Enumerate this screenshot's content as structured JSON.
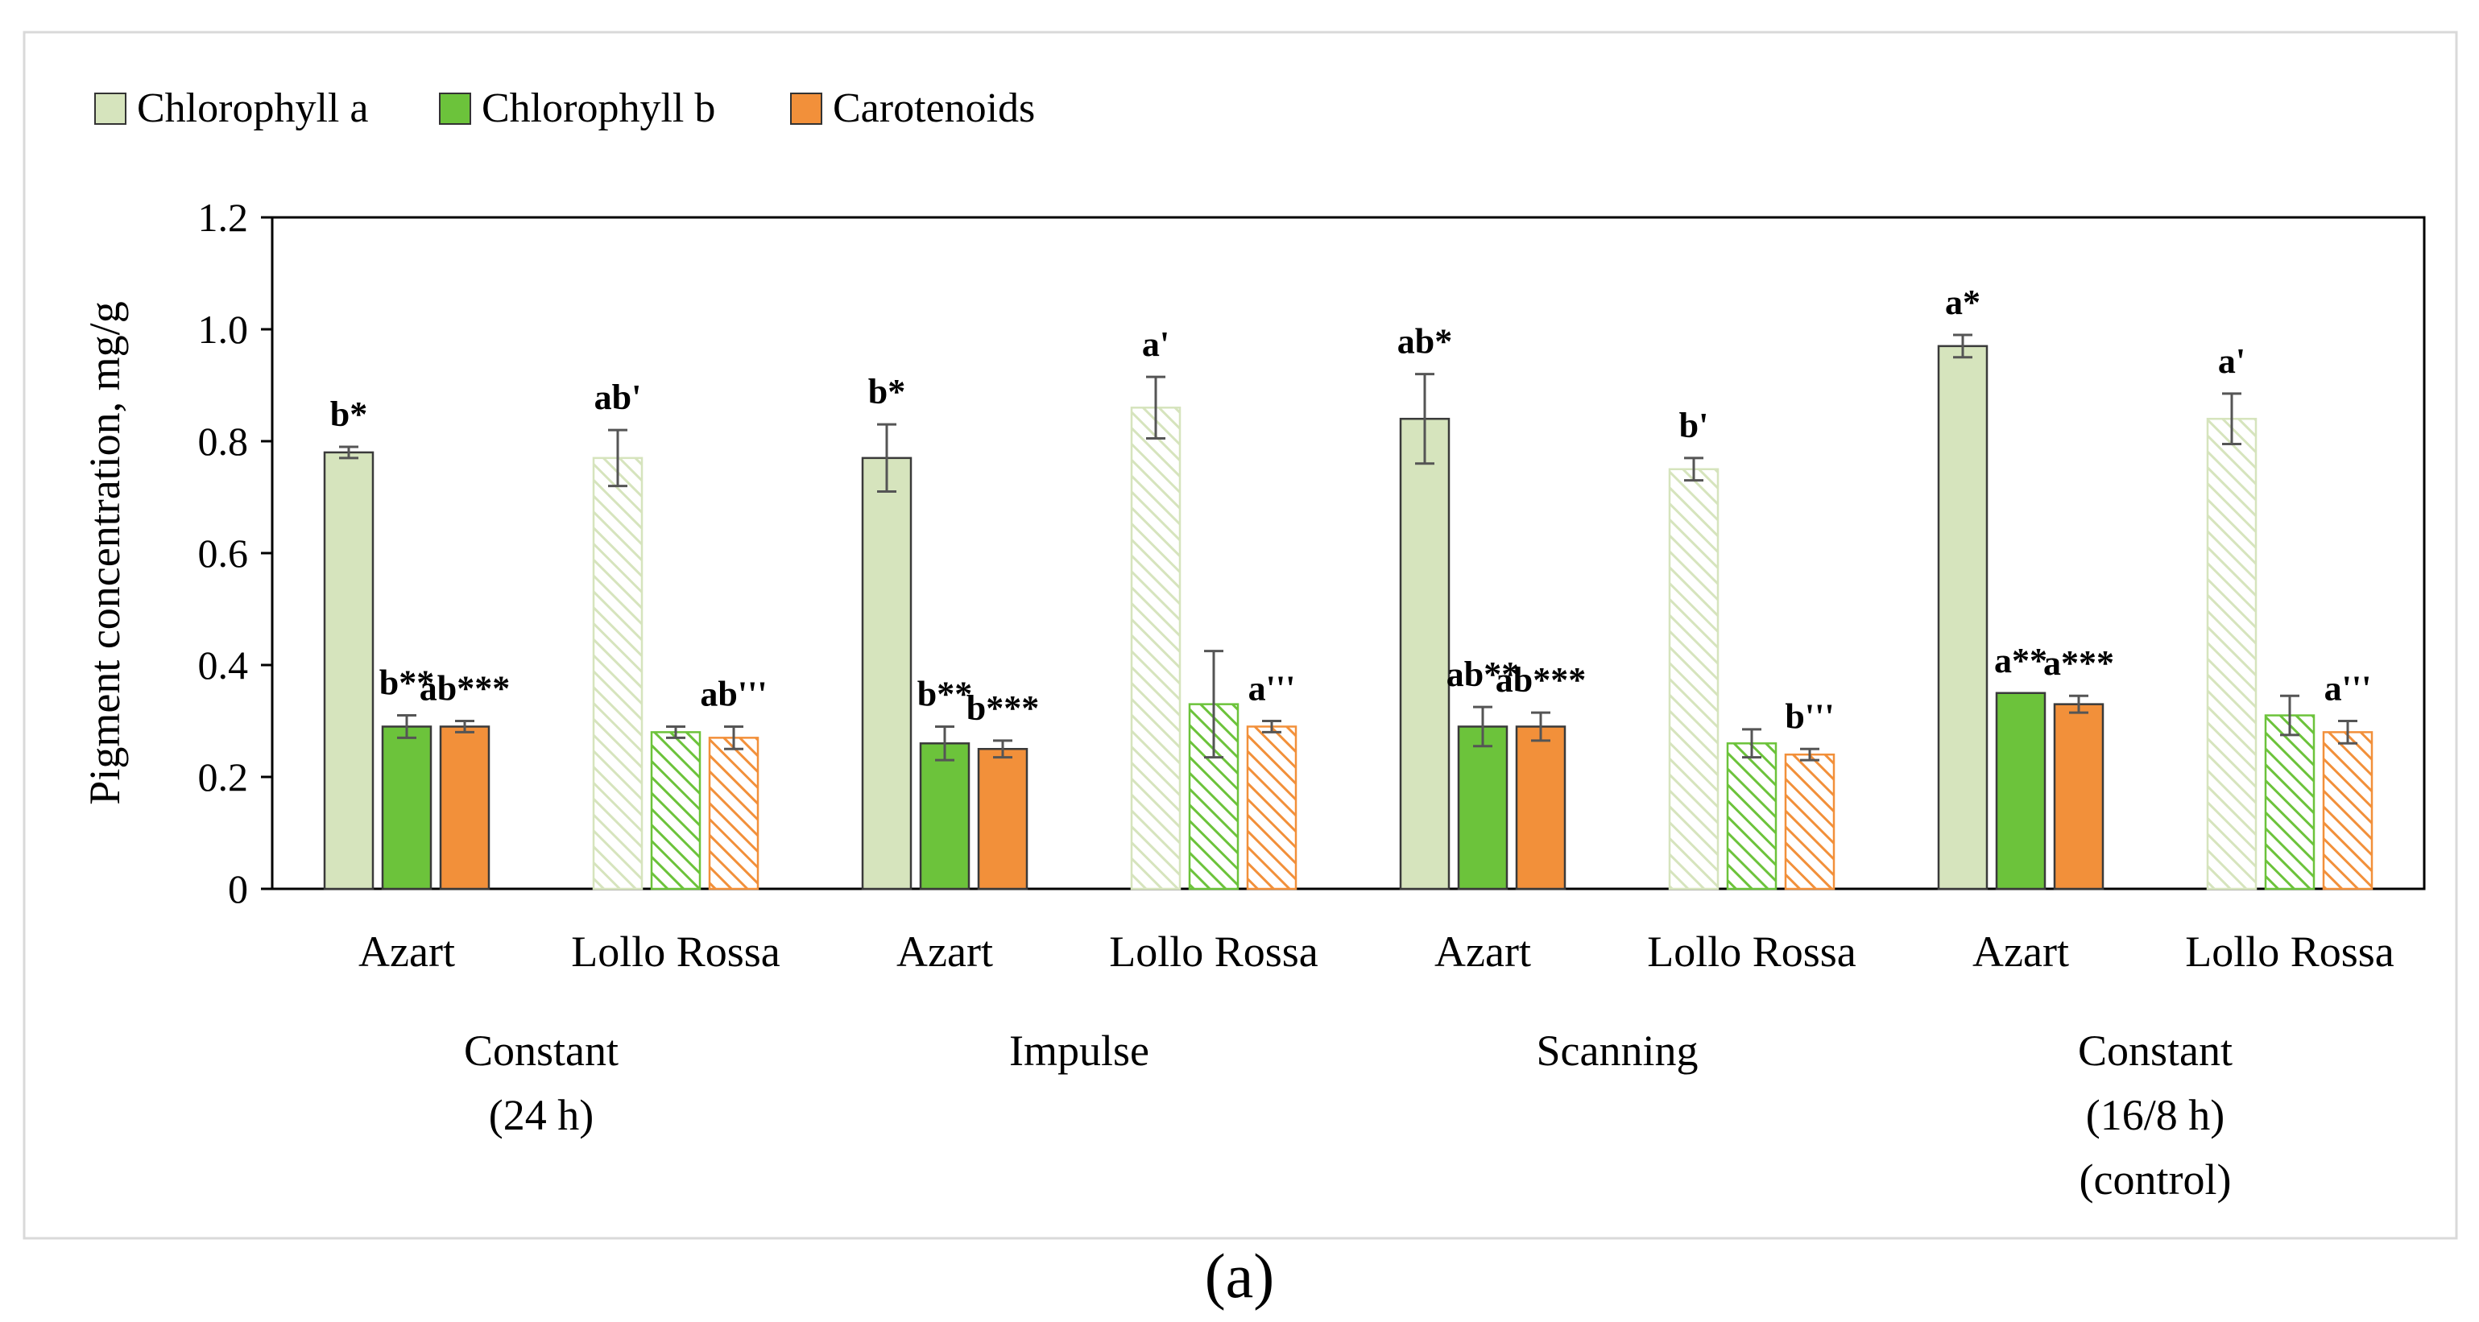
{
  "colors": {
    "chl_a": "#d6e4bd",
    "chl_a_edge": "#5a5a4a",
    "chl_b": "#6cc33b",
    "carotenoids": "#f2903a",
    "axis": "#000000",
    "error_bar": "#555555",
    "frame": "#d9d9d9"
  },
  "panel_label": "(a)",
  "chart_data": {
    "type": "bar",
    "title": "",
    "xlabel": "",
    "ylabel": "Pigment concentration, mg/g",
    "ylim": [
      0,
      1.2
    ],
    "yticks": [
      {
        "value": 0,
        "label": "0"
      },
      {
        "value": 0.2,
        "label": "0.2"
      },
      {
        "value": 0.4,
        "label": "0.4"
      },
      {
        "value": 0.6,
        "label": "0.6"
      },
      {
        "value": 0.8,
        "label": "0.8"
      },
      {
        "value": 1.0,
        "label": "1.0"
      },
      {
        "value": 1.2,
        "label": "1.2"
      }
    ],
    "grid": false,
    "legend": {
      "placement": "top-left",
      "entries": [
        {
          "name": "Chlorophyll a",
          "key": "chl_a"
        },
        {
          "name": "Chlorophyll b",
          "key": "chl_b"
        },
        {
          "name": "Carotenoids",
          "key": "carotenoids"
        }
      ]
    },
    "categories": [
      "Azart",
      "Lollo Rossa",
      "Azart",
      "Lollo Rossa",
      "Azart",
      "Lollo Rossa",
      "Azart",
      "Lollo Rossa"
    ],
    "category_hatched": [
      false,
      true,
      false,
      true,
      false,
      true,
      false,
      true
    ],
    "groups": [
      {
        "lines": [
          "Constant",
          "(24 h)"
        ],
        "span": [
          0,
          1
        ]
      },
      {
        "lines": [
          "Impulse"
        ],
        "span": [
          2,
          3
        ]
      },
      {
        "lines": [
          "Scanning"
        ],
        "span": [
          4,
          5
        ]
      },
      {
        "lines": [
          "Constant",
          "(16/8 h)",
          "(control)"
        ],
        "span": [
          6,
          7
        ]
      }
    ],
    "series": [
      {
        "name": "Chlorophyll a",
        "key": "chl_a",
        "values": [
          0.78,
          0.77,
          0.77,
          0.86,
          0.84,
          0.75,
          0.97,
          0.84
        ],
        "errors": [
          0.01,
          0.05,
          0.06,
          0.055,
          0.08,
          0.02,
          0.02,
          0.045
        ],
        "labels": [
          "b*",
          "ab'",
          "b*",
          "a'",
          "ab*",
          "b'",
          "a*",
          "a'"
        ]
      },
      {
        "name": "Chlorophyll b",
        "key": "chl_b",
        "values": [
          0.29,
          0.28,
          0.26,
          0.33,
          0.29,
          0.26,
          0.35,
          0.31
        ],
        "errors": [
          0.02,
          0.01,
          0.03,
          0.095,
          0.035,
          0.025,
          0.0,
          0.035
        ],
        "labels": [
          "b**",
          "",
          "b**",
          "",
          "ab**",
          "",
          "a**",
          ""
        ]
      },
      {
        "name": "Carotenoids",
        "key": "carotenoids",
        "values": [
          0.29,
          0.27,
          0.25,
          0.29,
          0.29,
          0.24,
          0.33,
          0.28
        ],
        "errors": [
          0.01,
          0.02,
          0.015,
          0.01,
          0.025,
          0.01,
          0.015,
          0.02
        ],
        "labels": [
          "ab***",
          "ab'''",
          "b***",
          "a'''",
          "ab***",
          "b'''",
          "a***",
          "a'''"
        ]
      }
    ]
  }
}
